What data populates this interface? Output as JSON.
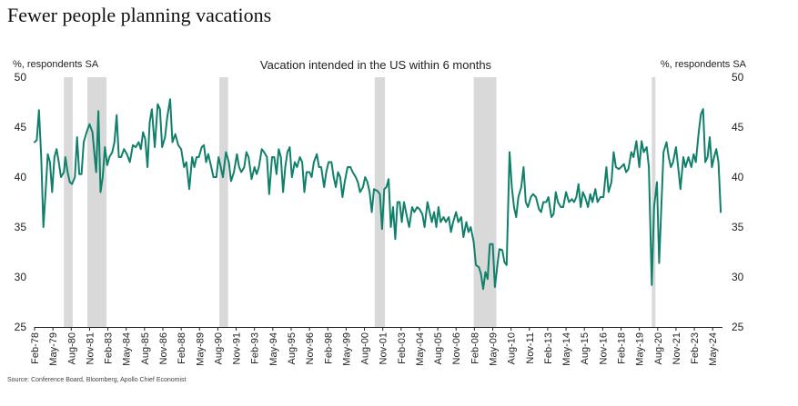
{
  "title": "Fewer people planning vacations",
  "source": "Source: Conference Board, Bloomberg, Apollo Chief Economist",
  "colors": {
    "line": "#11806a",
    "recession": "#d9d9d9",
    "axis": "#222222",
    "text": "#222222"
  },
  "chart_data": {
    "type": "line",
    "title": "Vacation intended in the US within 6 months",
    "ylabel_left": "%, respondents SA",
    "ylabel_right": "%, respondents SA",
    "ylim": [
      25,
      50
    ],
    "yticks": [
      25,
      30,
      35,
      40,
      45,
      50
    ],
    "x_range": [
      1978.0,
      2024.92
    ],
    "xtick_labels": [
      "Feb-78",
      "May-79",
      "Aug-80",
      "Nov-81",
      "Feb-83",
      "May-84",
      "Aug-85",
      "Nov-86",
      "Feb-88",
      "May-89",
      "Aug-90",
      "Nov-91",
      "Feb-93",
      "May-94",
      "Aug-95",
      "Nov-96",
      "Feb-98",
      "May-99",
      "Aug-00",
      "Nov-01",
      "Feb-03",
      "May-04",
      "Aug-05",
      "Nov-06",
      "Feb-08",
      "May-09",
      "Aug-10",
      "Nov-11",
      "Feb-13",
      "May-14",
      "Aug-15",
      "Nov-16",
      "Feb-18",
      "May-19",
      "Aug-20",
      "Nov-21",
      "Feb-23",
      "May-24"
    ],
    "recessions": [
      [
        1980.0,
        1980.6
      ],
      [
        1981.6,
        1982.9
      ],
      [
        1990.6,
        1991.2
      ],
      [
        2001.2,
        2001.9
      ],
      [
        2007.95,
        2009.5
      ],
      [
        2020.1,
        2020.35
      ]
    ],
    "series": [
      {
        "name": "Vacation intended in the US within 6 months",
        "points": [
          [
            1978.0,
            43.5
          ],
          [
            1978.15,
            43.7
          ],
          [
            1978.3,
            46.7
          ],
          [
            1978.45,
            42.0
          ],
          [
            1978.6,
            35.0
          ],
          [
            1978.75,
            38.5
          ],
          [
            1978.9,
            42.3
          ],
          [
            1979.05,
            41.5
          ],
          [
            1979.2,
            38.5
          ],
          [
            1979.35,
            42.0
          ],
          [
            1979.5,
            42.8
          ],
          [
            1979.65,
            41.5
          ],
          [
            1979.8,
            40.0
          ],
          [
            1980.0,
            40.5
          ],
          [
            1980.1,
            42.0
          ],
          [
            1980.25,
            40.5
          ],
          [
            1980.4,
            39.5
          ],
          [
            1980.55,
            39.3
          ],
          [
            1980.75,
            40.0
          ],
          [
            1980.9,
            44.0
          ],
          [
            1981.05,
            40.3
          ],
          [
            1981.2,
            40.3
          ],
          [
            1981.35,
            43.5
          ],
          [
            1981.55,
            44.5
          ],
          [
            1981.75,
            45.3
          ],
          [
            1981.95,
            44.5
          ],
          [
            1982.1,
            42.0
          ],
          [
            1982.2,
            40.5
          ],
          [
            1982.35,
            46.6
          ],
          [
            1982.5,
            38.5
          ],
          [
            1982.65,
            40.0
          ],
          [
            1982.8,
            43.0
          ],
          [
            1982.95,
            41.2
          ],
          [
            1983.1,
            42.0
          ],
          [
            1983.3,
            42.5
          ],
          [
            1983.45,
            43.5
          ],
          [
            1983.6,
            46.2
          ],
          [
            1983.75,
            42.0
          ],
          [
            1983.9,
            42.0
          ],
          [
            1984.1,
            42.8
          ],
          [
            1984.3,
            42.3
          ],
          [
            1984.5,
            41.5
          ],
          [
            1984.7,
            43.2
          ],
          [
            1984.9,
            43.0
          ],
          [
            1985.1,
            43.5
          ],
          [
            1985.25,
            42.8
          ],
          [
            1985.4,
            44.5
          ],
          [
            1985.55,
            43.8
          ],
          [
            1985.7,
            41.0
          ],
          [
            1985.85,
            45.5
          ],
          [
            1986.0,
            46.8
          ],
          [
            1986.2,
            43.0
          ],
          [
            1986.4,
            47.3
          ],
          [
            1986.55,
            46.8
          ],
          [
            1986.7,
            43.0
          ],
          [
            1986.9,
            44.0
          ],
          [
            1987.05,
            46.0
          ],
          [
            1987.25,
            47.8
          ],
          [
            1987.4,
            43.5
          ],
          [
            1987.6,
            44.3
          ],
          [
            1987.8,
            43.2
          ],
          [
            1988.0,
            42.8
          ],
          [
            1988.2,
            41.0
          ],
          [
            1988.35,
            41.5
          ],
          [
            1988.55,
            38.8
          ],
          [
            1988.75,
            42.0
          ],
          [
            1988.9,
            41.0
          ],
          [
            1989.05,
            42.0
          ],
          [
            1989.2,
            42.0
          ],
          [
            1989.4,
            43.0
          ],
          [
            1989.55,
            43.2
          ],
          [
            1989.7,
            41.5
          ],
          [
            1989.85,
            42.3
          ],
          [
            1990.05,
            41.0
          ],
          [
            1990.2,
            40.0
          ],
          [
            1990.4,
            40.0
          ],
          [
            1990.55,
            42.0
          ],
          [
            1990.7,
            41.0
          ],
          [
            1990.85,
            40.0
          ],
          [
            1991.05,
            42.5
          ],
          [
            1991.25,
            41.5
          ],
          [
            1991.4,
            39.6
          ],
          [
            1991.6,
            40.5
          ],
          [
            1991.8,
            42.3
          ],
          [
            1991.95,
            41.0
          ],
          [
            1992.1,
            40.5
          ],
          [
            1992.3,
            41.0
          ],
          [
            1992.45,
            42.5
          ],
          [
            1992.6,
            42.0
          ],
          [
            1992.8,
            39.8
          ],
          [
            1993.0,
            41.0
          ],
          [
            1993.15,
            40.3
          ],
          [
            1993.3,
            41.0
          ],
          [
            1993.5,
            42.8
          ],
          [
            1993.65,
            42.5
          ],
          [
            1993.85,
            42.0
          ],
          [
            1994.0,
            38.3
          ],
          [
            1994.2,
            42.0
          ],
          [
            1994.35,
            42.0
          ],
          [
            1994.5,
            40.3
          ],
          [
            1994.65,
            42.8
          ],
          [
            1994.8,
            42.0
          ],
          [
            1994.95,
            38.5
          ],
          [
            1995.1,
            41.0
          ],
          [
            1995.25,
            42.5
          ],
          [
            1995.4,
            43.0
          ],
          [
            1995.55,
            40.0
          ],
          [
            1995.75,
            41.5
          ],
          [
            1995.9,
            41.0
          ],
          [
            1996.1,
            42.0
          ],
          [
            1996.25,
            41.5
          ],
          [
            1996.4,
            38.5
          ],
          [
            1996.55,
            40.5
          ],
          [
            1996.75,
            40.5
          ],
          [
            1996.9,
            40.0
          ],
          [
            1997.05,
            41.5
          ],
          [
            1997.25,
            42.3
          ],
          [
            1997.4,
            41.0
          ],
          [
            1997.55,
            41.0
          ],
          [
            1997.75,
            39.0
          ],
          [
            1997.9,
            40.5
          ],
          [
            1998.05,
            41.5
          ],
          [
            1998.25,
            41.5
          ],
          [
            1998.4,
            40.0
          ],
          [
            1998.55,
            39.0
          ],
          [
            1998.7,
            40.5
          ],
          [
            1998.85,
            40.0
          ],
          [
            1999.0,
            38.0
          ],
          [
            1999.15,
            39.5
          ],
          [
            1999.35,
            41.0
          ],
          [
            1999.55,
            41.0
          ],
          [
            1999.7,
            40.5
          ],
          [
            1999.9,
            40.0
          ],
          [
            2000.05,
            39.5
          ],
          [
            2000.2,
            38.5
          ],
          [
            2000.4,
            39.0
          ],
          [
            2000.55,
            40.0
          ],
          [
            2000.7,
            39.5
          ],
          [
            2000.85,
            38.5
          ],
          [
            2001.0,
            36.5
          ],
          [
            2001.15,
            38.8
          ],
          [
            2001.4,
            38.6
          ],
          [
            2001.55,
            38.3
          ],
          [
            2001.7,
            34.8
          ],
          [
            2001.85,
            38.8
          ],
          [
            2002.0,
            39.0
          ],
          [
            2002.15,
            39.8
          ],
          [
            2002.3,
            35.0
          ],
          [
            2002.45,
            37.0
          ],
          [
            2002.6,
            33.8
          ],
          [
            2002.75,
            37.5
          ],
          [
            2002.9,
            37.5
          ],
          [
            2003.05,
            35.5
          ],
          [
            2003.2,
            37.5
          ],
          [
            2003.4,
            36.0
          ],
          [
            2003.55,
            35.0
          ],
          [
            2003.75,
            37.0
          ],
          [
            2003.9,
            36.5
          ],
          [
            2004.1,
            37.0
          ],
          [
            2004.25,
            36.8
          ],
          [
            2004.45,
            36.3
          ],
          [
            2004.6,
            35.0
          ],
          [
            2004.8,
            37.5
          ],
          [
            2004.95,
            36.5
          ],
          [
            2005.1,
            35.5
          ],
          [
            2005.25,
            36.5
          ],
          [
            2005.4,
            35.0
          ],
          [
            2005.55,
            37.0
          ],
          [
            2005.7,
            35.5
          ],
          [
            2005.9,
            36.0
          ],
          [
            2006.05,
            35.5
          ],
          [
            2006.25,
            36.0
          ],
          [
            2006.4,
            34.5
          ],
          [
            2006.55,
            35.5
          ],
          [
            2006.75,
            36.5
          ],
          [
            2006.9,
            35.5
          ],
          [
            2007.1,
            36.0
          ],
          [
            2007.25,
            34.0
          ],
          [
            2007.45,
            35.5
          ],
          [
            2007.6,
            34.5
          ],
          [
            2007.75,
            35.0
          ],
          [
            2007.95,
            33.5
          ],
          [
            2008.1,
            31.2
          ],
          [
            2008.3,
            31.0
          ],
          [
            2008.45,
            30.3
          ],
          [
            2008.6,
            28.8
          ],
          [
            2008.75,
            30.5
          ],
          [
            2008.9,
            29.8
          ],
          [
            2009.05,
            33.3
          ],
          [
            2009.25,
            33.3
          ],
          [
            2009.4,
            29.0
          ],
          [
            2009.55,
            31.0
          ],
          [
            2009.7,
            32.8
          ],
          [
            2009.9,
            32.7
          ],
          [
            2010.05,
            31.5
          ],
          [
            2010.2,
            31.2
          ],
          [
            2010.4,
            42.5
          ],
          [
            2010.55,
            39.0
          ],
          [
            2010.7,
            37.0
          ],
          [
            2010.85,
            36.0
          ],
          [
            2011.0,
            38.0
          ],
          [
            2011.2,
            39.0
          ],
          [
            2011.35,
            41.0
          ],
          [
            2011.5,
            37.5
          ],
          [
            2011.65,
            37.0
          ],
          [
            2011.85,
            38.0
          ],
          [
            2012.0,
            38.3
          ],
          [
            2012.2,
            38.0
          ],
          [
            2012.4,
            36.8
          ],
          [
            2012.55,
            36.5
          ],
          [
            2012.7,
            37.5
          ],
          [
            2012.9,
            37.5
          ],
          [
            2013.05,
            38.0
          ],
          [
            2013.25,
            36.0
          ],
          [
            2013.4,
            36.3
          ],
          [
            2013.55,
            38.5
          ],
          [
            2013.7,
            37.5
          ],
          [
            2013.9,
            37.0
          ],
          [
            2014.05,
            37.0
          ],
          [
            2014.25,
            38.5
          ],
          [
            2014.45,
            37.5
          ],
          [
            2014.65,
            37.8
          ],
          [
            2014.8,
            37.5
          ],
          [
            2014.95,
            38.0
          ],
          [
            2015.1,
            39.3
          ],
          [
            2015.25,
            37.0
          ],
          [
            2015.4,
            38.5
          ],
          [
            2015.55,
            38.0
          ],
          [
            2015.75,
            37.0
          ],
          [
            2015.9,
            38.3
          ],
          [
            2016.05,
            37.5
          ],
          [
            2016.25,
            38.8
          ],
          [
            2016.4,
            37.5
          ],
          [
            2016.6,
            38.0
          ],
          [
            2016.8,
            38.0
          ],
          [
            2017.0,
            41.0
          ],
          [
            2017.15,
            38.5
          ],
          [
            2017.35,
            39.5
          ],
          [
            2017.5,
            42.5
          ],
          [
            2017.65,
            41.0
          ],
          [
            2017.85,
            40.8
          ],
          [
            2018.0,
            41.0
          ],
          [
            2018.2,
            41.3
          ],
          [
            2018.35,
            40.5
          ],
          [
            2018.5,
            40.8
          ],
          [
            2018.7,
            42.5
          ],
          [
            2018.85,
            42.0
          ],
          [
            2019.05,
            43.6
          ],
          [
            2019.25,
            41.0
          ],
          [
            2019.4,
            43.6
          ],
          [
            2019.55,
            42.5
          ],
          [
            2019.75,
            43.0
          ],
          [
            2019.9,
            41.0
          ],
          [
            2020.1,
            29.2
          ],
          [
            2020.25,
            37.0
          ],
          [
            2020.45,
            39.5
          ],
          [
            2020.6,
            31.4
          ],
          [
            2020.75,
            37.0
          ],
          [
            2020.9,
            42.5
          ],
          [
            2021.1,
            43.5
          ],
          [
            2021.25,
            42.0
          ],
          [
            2021.4,
            41.0
          ],
          [
            2021.55,
            41.5
          ],
          [
            2021.75,
            43.0
          ],
          [
            2021.9,
            41.0
          ],
          [
            2022.05,
            38.8
          ],
          [
            2022.25,
            42.0
          ],
          [
            2022.4,
            41.0
          ],
          [
            2022.6,
            42.0
          ],
          [
            2022.8,
            41.0
          ],
          [
            2022.95,
            42.3
          ],
          [
            2023.1,
            41.5
          ],
          [
            2023.3,
            44.5
          ],
          [
            2023.45,
            46.3
          ],
          [
            2023.6,
            46.8
          ],
          [
            2023.75,
            41.5
          ],
          [
            2023.9,
            42.0
          ],
          [
            2024.05,
            44.0
          ],
          [
            2024.2,
            41.0
          ],
          [
            2024.35,
            42.0
          ],
          [
            2024.5,
            42.8
          ],
          [
            2024.65,
            41.5
          ],
          [
            2024.8,
            36.5
          ]
        ]
      }
    ]
  }
}
